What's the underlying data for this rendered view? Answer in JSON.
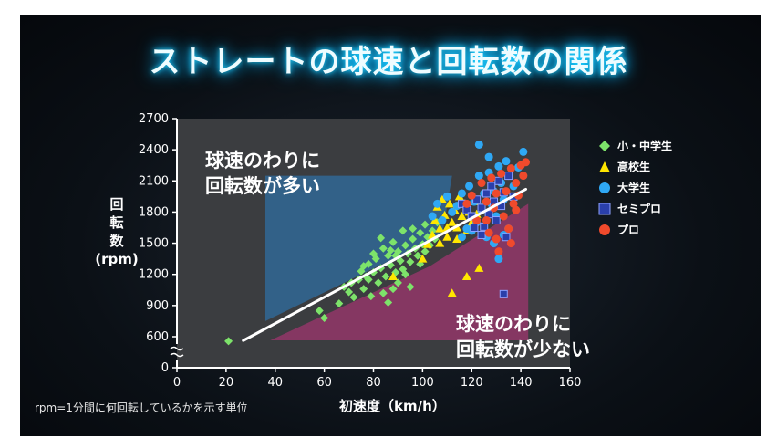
{
  "title": "ストレートの球速と回転数の関係",
  "note": "rpm=1分間に何回転しているかを示す単位",
  "annotations": {
    "high": [
      "球速のわりに",
      "回転数が多い"
    ],
    "low": [
      "球速のわりに",
      "回転数が少ない"
    ]
  },
  "colors": {
    "elementary_middle": "#7de36a",
    "high_school": "#ffe600",
    "university": "#2fa8f5",
    "semi_pro": "#2a3faa",
    "pro": "#f04a2c",
    "zone_high": "#2c7fc2",
    "zone_low": "#b8347a",
    "trend": "#ffffff"
  },
  "chart_data": {
    "type": "scatter",
    "title": "ストレートの球速と回転数の関係",
    "xlabel": "初速度（km/h）",
    "ylabel": [
      "回",
      "転",
      "数",
      "(rpm)"
    ],
    "xlim": [
      0,
      160
    ],
    "ylim": [
      0,
      2700
    ],
    "y_axis_break": true,
    "xticks": [
      0,
      20,
      40,
      60,
      80,
      100,
      120,
      140,
      160
    ],
    "yticks": [
      0,
      600,
      900,
      1200,
      1500,
      1800,
      2100,
      2400,
      2700
    ],
    "legend_position": "right",
    "grid": false,
    "trendline": {
      "x": [
        27,
        142
      ],
      "y": [
        450,
        2020
      ]
    },
    "zones": [
      {
        "name": "high",
        "polygon": [
          [
            36,
            2150
          ],
          [
            112,
            2150
          ],
          [
            108,
            1580
          ],
          [
            36,
            750
          ]
        ]
      },
      {
        "name": "low",
        "polygon": [
          [
            38,
            460
          ],
          [
            143,
            460
          ],
          [
            143,
            1880
          ],
          [
            103,
            1280
          ]
        ]
      }
    ],
    "series": [
      {
        "name": "小・中学生",
        "marker": "diamond",
        "color": "#7de36a",
        "points": [
          [
            21,
            430
          ],
          [
            58,
            850
          ],
          [
            60,
            780
          ],
          [
            66,
            920
          ],
          [
            68,
            1080
          ],
          [
            70,
            1030
          ],
          [
            71,
            1120
          ],
          [
            72,
            980
          ],
          [
            74,
            1150
          ],
          [
            75,
            1230
          ],
          [
            76,
            1060
          ],
          [
            77,
            1180
          ],
          [
            78,
            1300
          ],
          [
            79,
            990
          ],
          [
            80,
            1220
          ],
          [
            81,
            1350
          ],
          [
            82,
            1120
          ],
          [
            83,
            1260
          ],
          [
            84,
            1450
          ],
          [
            85,
            1180
          ],
          [
            86,
            1380
          ],
          [
            87,
            1290
          ],
          [
            88,
            1510
          ],
          [
            89,
            1220
          ],
          [
            90,
            1420
          ],
          [
            91,
            1330
          ],
          [
            92,
            1250
          ],
          [
            93,
            1480
          ],
          [
            94,
            1400
          ],
          [
            95,
            1320
          ],
          [
            96,
            1540
          ],
          [
            97,
            1450
          ],
          [
            98,
            1380
          ],
          [
            99,
            1600
          ],
          [
            100,
            1490
          ],
          [
            101,
            1420
          ],
          [
            102,
            1560
          ],
          [
            103,
            1480
          ],
          [
            104,
            1620
          ],
          [
            105,
            1540
          ],
          [
            106,
            1700
          ],
          [
            84,
            1020
          ],
          [
            90,
            1120
          ],
          [
            86,
            930
          ],
          [
            93,
            1200
          ],
          [
            88,
            1060
          ],
          [
            95,
            1080
          ],
          [
            99,
            1300
          ],
          [
            92,
            1620
          ],
          [
            80,
            1400
          ],
          [
            87,
            1430
          ],
          [
            76,
            1280
          ],
          [
            78,
            1150
          ],
          [
            96,
            1640
          ],
          [
            101,
            1680
          ],
          [
            83,
            1550
          ],
          [
            89,
            1380
          ]
        ]
      },
      {
        "name": "高校生",
        "marker": "triangle",
        "color": "#ffe600",
        "points": [
          [
            88,
            1180
          ],
          [
            100,
            1350
          ],
          [
            102,
            1490
          ],
          [
            104,
            1580
          ],
          [
            105,
            1720
          ],
          [
            106,
            1850
          ],
          [
            107,
            1640
          ],
          [
            108,
            1920
          ],
          [
            109,
            1770
          ],
          [
            110,
            1560
          ],
          [
            111,
            1880
          ],
          [
            112,
            1700
          ],
          [
            113,
            1820
          ],
          [
            114,
            1650
          ],
          [
            115,
            1950
          ],
          [
            116,
            1760
          ],
          [
            117,
            1880
          ],
          [
            118,
            1620
          ],
          [
            119,
            1800
          ],
          [
            120,
            1700
          ],
          [
            121,
            1900
          ],
          [
            122,
            1780
          ],
          [
            118,
            1180
          ],
          [
            123,
            1260
          ],
          [
            112,
            1020
          ],
          [
            107,
            1500
          ],
          [
            110,
            1650
          ],
          [
            114,
            1540
          ]
        ]
      },
      {
        "name": "大学生",
        "marker": "circle",
        "color": "#2fa8f5",
        "points": [
          [
            104,
            1760
          ],
          [
            106,
            1880
          ],
          [
            108,
            1720
          ],
          [
            110,
            1950
          ],
          [
            112,
            1800
          ],
          [
            114,
            1860
          ],
          [
            116,
            1980
          ],
          [
            118,
            1640
          ],
          [
            119,
            2050
          ],
          [
            120,
            1760
          ],
          [
            121,
            1900
          ],
          [
            122,
            1700
          ],
          [
            123,
            2150
          ],
          [
            124,
            1820
          ],
          [
            125,
            1980
          ],
          [
            126,
            1560
          ],
          [
            127,
            2180
          ],
          [
            128,
            1880
          ],
          [
            129,
            2000
          ],
          [
            130,
            1760
          ],
          [
            131,
            2240
          ],
          [
            132,
            2080
          ],
          [
            133,
            1920
          ],
          [
            134,
            2290
          ],
          [
            135,
            2150
          ],
          [
            137,
            2050
          ],
          [
            139,
            2230
          ],
          [
            141,
            2380
          ],
          [
            123,
            2450
          ],
          [
            127,
            2330
          ],
          [
            129,
            1500
          ],
          [
            131,
            1350
          ],
          [
            133,
            1580
          ],
          [
            116,
            1560
          ],
          [
            120,
            1620
          ],
          [
            135,
            1640
          ]
        ]
      },
      {
        "name": "セミプロ",
        "marker": "square",
        "color": "#2a3faa",
        "points": [
          [
            116,
            1880
          ],
          [
            118,
            1820
          ],
          [
            120,
            1760
          ],
          [
            122,
            1920
          ],
          [
            124,
            1840
          ],
          [
            125,
            1660
          ],
          [
            126,
            1980
          ],
          [
            127,
            1780
          ],
          [
            128,
            2050
          ],
          [
            129,
            1900
          ],
          [
            130,
            1720
          ],
          [
            131,
            2100
          ],
          [
            132,
            1860
          ],
          [
            133,
            1990
          ],
          [
            134,
            1560
          ],
          [
            135,
            2150
          ],
          [
            137,
            1950
          ],
          [
            133,
            1010
          ],
          [
            121,
            1650
          ],
          [
            124,
            1580
          ]
        ]
      },
      {
        "name": "プロ",
        "marker": "circle",
        "color": "#f04a2c",
        "points": [
          [
            118,
            1880
          ],
          [
            120,
            1960
          ],
          [
            122,
            1720
          ],
          [
            124,
            2080
          ],
          [
            126,
            1900
          ],
          [
            127,
            1600
          ],
          [
            128,
            2130
          ],
          [
            129,
            1840
          ],
          [
            130,
            1980
          ],
          [
            131,
            1420
          ],
          [
            132,
            2170
          ],
          [
            133,
            1760
          ],
          [
            134,
            2000
          ],
          [
            135,
            1640
          ],
          [
            136,
            2220
          ],
          [
            137,
            1880
          ],
          [
            138,
            2080
          ],
          [
            139,
            1960
          ],
          [
            140,
            2250
          ],
          [
            141,
            2150
          ],
          [
            142,
            2280
          ],
          [
            130,
            1540
          ],
          [
            126,
            1720
          ],
          [
            136,
            1500
          ],
          [
            138,
            1820
          ]
        ]
      }
    ]
  }
}
